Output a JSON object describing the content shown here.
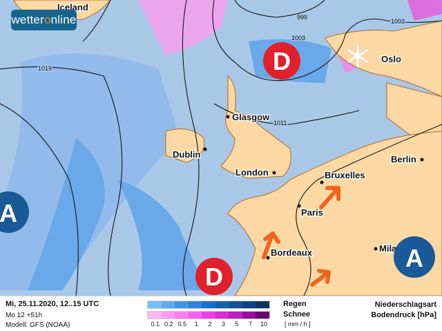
{
  "logo": {
    "text_a": "wetter",
    "text_o": "o",
    "text_b": "nline"
  },
  "map": {
    "cities": [
      "Iceland",
      "Oslo",
      "Glasgow",
      "Dublin",
      "London",
      "Bruxelles",
      "Berlin",
      "Paris",
      "Bordeaux",
      "Milano"
    ],
    "city_display": {
      "milano": "Mila"
    },
    "isobars": [
      "999",
      "1003",
      "1003",
      "1019",
      "1011"
    ],
    "pressure_systems": [
      {
        "type": "low",
        "label": "D"
      },
      {
        "type": "low",
        "label": "D"
      },
      {
        "type": "high",
        "label": "A"
      },
      {
        "type": "high",
        "label": "A"
      }
    ],
    "colors": {
      "ocean": "#a9c8e8",
      "land": "#fcd9a4",
      "low": "#e0202c",
      "high": "#1a5a96",
      "arrow": "#f0641e",
      "border": "#b5651d"
    }
  },
  "footer": {
    "datetime": "Mi, 25.11.2020, 12..15 UTC",
    "run": "Mo 12 +51h",
    "model": "Modell: GFS (NOAA)",
    "rain_label": "Regen",
    "snow_label": "Schnee",
    "unit": "[ mm / h ]",
    "ticks": [
      "0.1",
      "0.2",
      "0.5",
      "1",
      "2",
      "3",
      "5",
      "7",
      "10"
    ],
    "rain_colors": [
      "#7abef8",
      "#5eaaf0",
      "#3f95e8",
      "#2b83dc",
      "#1b70cc",
      "#1561b2",
      "#0f5298",
      "#0b4282",
      "#0a3462"
    ],
    "snow_colors": [
      "#fbb8f4",
      "#f99cf2",
      "#f77ff0",
      "#f45ff0",
      "#ef3ee8",
      "#d92dd8",
      "#bd1fbe",
      "#9a0f9a",
      "#6c006e"
    ],
    "title1": "Niederschlagsart",
    "title2": "Bodendruck [hPa]"
  }
}
